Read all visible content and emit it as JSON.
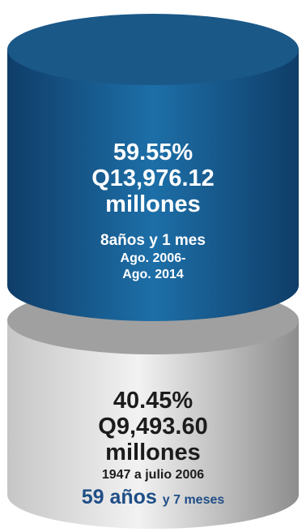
{
  "colors": {
    "top_light": "#1d6fa8",
    "top_dark": "#0f3d68",
    "top_cap": "#1a5888",
    "bottom_light": "#f2f2f2",
    "bottom_mid": "#c6c6c6",
    "bottom_dark": "#8d8d8d",
    "bottom_cap": "#a0a0a0",
    "accent": "#1f4e86"
  },
  "chart_data": {
    "type": "stacked-cylinder",
    "segments": [
      {
        "percent_label": "59.55%",
        "percent": 59.55,
        "amount_label": "Q13,976.12",
        "amount": 13976.12,
        "unit": "millones",
        "duration": "8años y 1 mes",
        "period_line1": "Ago. 2006-",
        "period_line2": "Ago. 2014"
      },
      {
        "percent_label": "40.45%",
        "percent": 40.45,
        "amount_label": "Q9,493.60",
        "amount": 9493.6,
        "unit": "millones",
        "period": "1947 a julio 2006",
        "years": "59 años",
        "months": "y 7 meses"
      }
    ]
  }
}
